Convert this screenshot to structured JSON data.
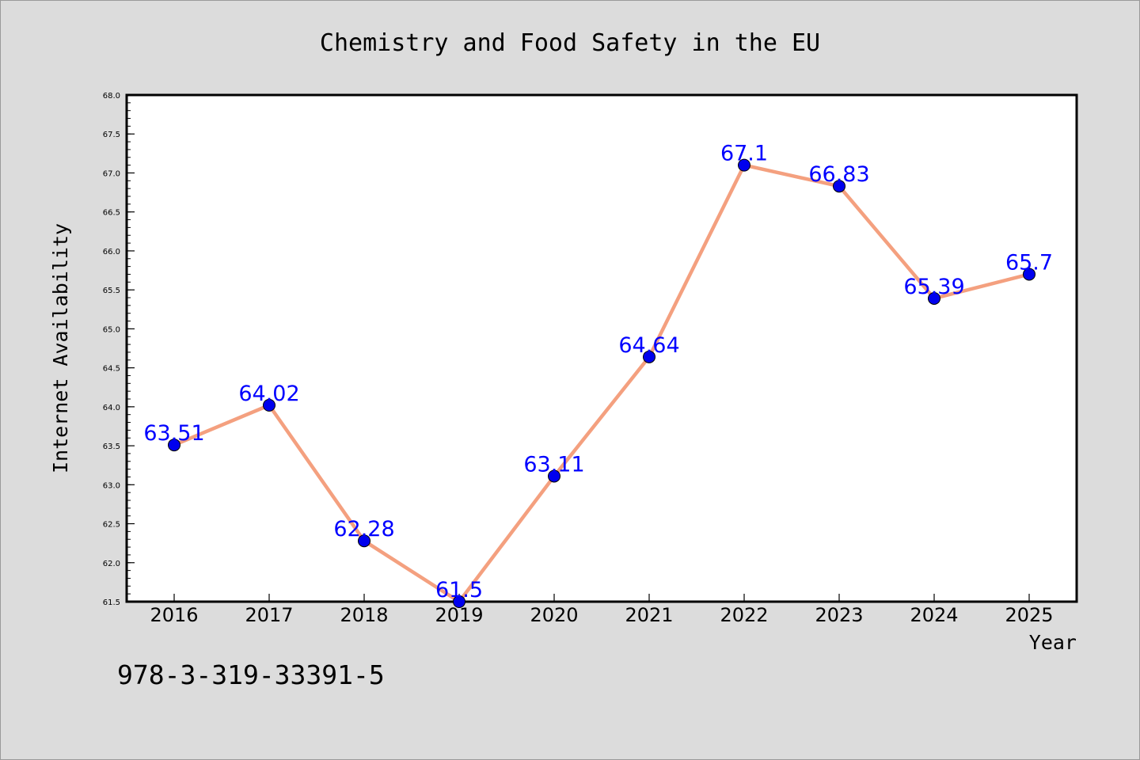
{
  "chart_data": {
    "type": "line",
    "title": "Chemistry and Food Safety in the EU",
    "xlabel": "Year",
    "ylabel": "Internet Availability",
    "categories": [
      "2016",
      "2017",
      "2018",
      "2019",
      "2020",
      "2021",
      "2022",
      "2023",
      "2024",
      "2025"
    ],
    "series": [
      {
        "values": [
          63.51,
          64.02,
          62.28,
          61.5,
          63.11,
          64.64,
          67.1,
          66.83,
          65.39,
          65.7
        ],
        "labels": [
          "63.51",
          "64.02",
          "62.28",
          "61.5",
          "63.11",
          "64.64",
          "67.1",
          "66.83",
          "65.39",
          "65.7"
        ],
        "line_color": "#f4a07f",
        "marker_color": "#0000ee",
        "label_color": "#0000ff"
      }
    ],
    "ylim": [
      61.5,
      68.0
    ],
    "yticks": [
      "61.5",
      "62.0",
      "62.5",
      "63.0",
      "63.5",
      "64.0",
      "64.5",
      "65.0",
      "65.5",
      "66.0",
      "66.5",
      "67.0",
      "67.5",
      "68.0"
    ],
    "grid": false,
    "legend": "none"
  },
  "footer": {
    "text": "978-3-319-33391-5"
  },
  "colors": {
    "figure_background": "#dcdcdc",
    "plot_background": "#ffffff",
    "axis": "#000000"
  }
}
